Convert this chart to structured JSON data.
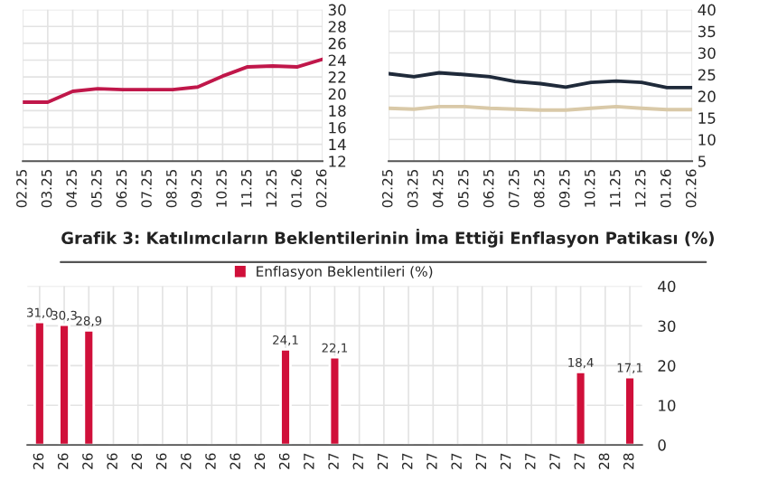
{
  "chart_data": [
    {
      "type": "line",
      "categories": [
        "02.25",
        "03.25",
        "04.25",
        "05.25",
        "06.25",
        "07.25",
        "08.25",
        "09.25",
        "10.25",
        "11.25",
        "12.25",
        "01.26",
        "02.26"
      ],
      "series": [
        {
          "color": "#c0174a",
          "values": [
            19.0,
            19.0,
            20.3,
            20.6,
            20.5,
            20.5,
            20.5,
            20.8,
            22.1,
            23.2,
            23.3,
            23.2,
            24.1
          ]
        }
      ],
      "ylim": [
        12,
        30
      ],
      "yticks": [
        12,
        14,
        16,
        18,
        20,
        22,
        24,
        26,
        28,
        30
      ],
      "grid": true,
      "legend": false
    },
    {
      "type": "line",
      "categories": [
        "02.25",
        "03.25",
        "04.25",
        "05.25",
        "06.25",
        "07.25",
        "08.25",
        "09.25",
        "10.25",
        "11.25",
        "12.25",
        "01.26",
        "02.26"
      ],
      "series": [
        {
          "color": "#1f2a3a",
          "values": [
            25.2,
            24.5,
            25.4,
            25.0,
            24.5,
            23.4,
            22.9,
            22.1,
            23.2,
            23.5,
            23.2,
            22.0,
            22.0
          ]
        },
        {
          "color": "#d9c9a8",
          "values": [
            17.2,
            17.0,
            17.6,
            17.6,
            17.2,
            17.0,
            16.8,
            16.8,
            17.2,
            17.6,
            17.2,
            16.9,
            16.9
          ]
        }
      ],
      "ylim": [
        5,
        40
      ],
      "yticks": [
        5,
        10,
        15,
        20,
        25,
        30,
        35,
        40
      ],
      "grid": true,
      "legend": false
    },
    {
      "type": "bar",
      "title": "Grafik 3: Katılımcıların Beklentilerinin İma Ettiği Enflasyon Patikası (%)",
      "categories": [
        "26",
        "26",
        "26",
        "26",
        "26",
        "26",
        "26",
        "26",
        "26",
        "26",
        "26",
        "27",
        "27",
        "27",
        "27",
        "27",
        "27",
        "27",
        "27",
        "27",
        "27",
        "27",
        "27",
        "28",
        "28"
      ],
      "series": [
        {
          "name": "Enflasyon Beklentileri (%)",
          "color": "#d0103a",
          "values": [
            31.0,
            30.3,
            28.9,
            null,
            null,
            null,
            null,
            null,
            null,
            null,
            24.1,
            null,
            22.1,
            null,
            null,
            null,
            null,
            null,
            null,
            null,
            null,
            null,
            18.4,
            null,
            17.1
          ],
          "value_labels": [
            "31,0",
            "30,3",
            "28,9",
            null,
            null,
            null,
            null,
            null,
            null,
            null,
            "24,1",
            null,
            "22,1",
            null,
            null,
            null,
            null,
            null,
            null,
            null,
            null,
            null,
            "18,4",
            null,
            "17,1"
          ]
        }
      ],
      "ylim": [
        0,
        40
      ],
      "yticks": [
        0,
        10,
        20,
        30,
        40
      ],
      "grid": true,
      "legend": "top"
    }
  ]
}
